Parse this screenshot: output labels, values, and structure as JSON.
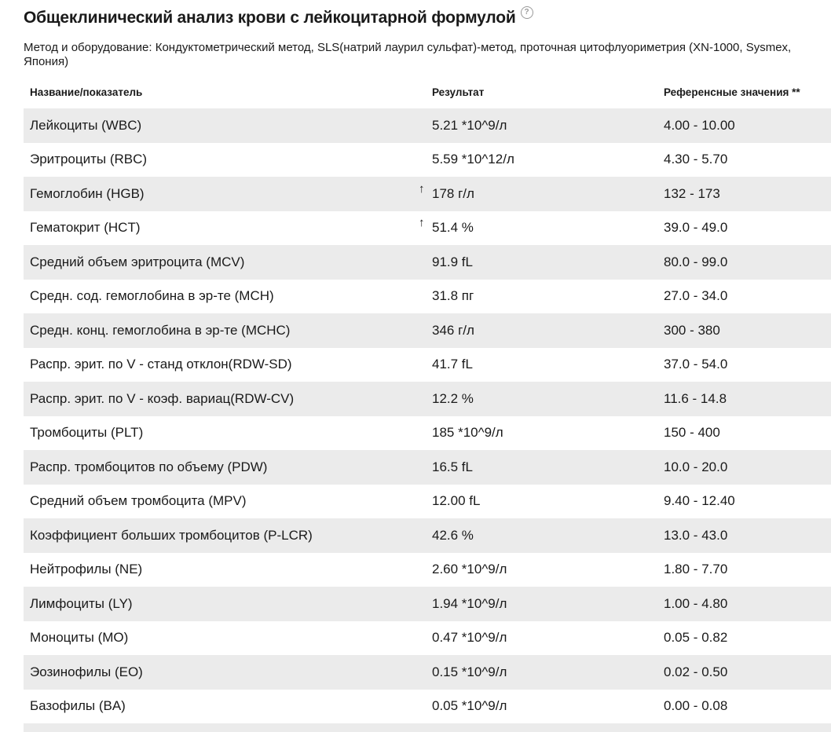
{
  "page": {
    "title": "Общеклинический анализ крови с лейкоцитарной формулой",
    "help_icon": "?",
    "method_line": "Метод и оборудование: Кондуктометрический метод, SLS(натрий лаурил сульфат)-метод, проточная цитофлуориметрия (XN-1000, Sysmex, Япония)"
  },
  "table": {
    "columns": [
      "Название/показатель",
      "Результат",
      "Референсные значения **"
    ],
    "flag_up_glyph": "↑",
    "rows": [
      {
        "name": "Лейкоциты (WBC)",
        "flag": "",
        "result": "5.21 *10^9/л",
        "reference": "4.00 - 10.00"
      },
      {
        "name": "Эритроциты (RBC)",
        "flag": "",
        "result": "5.59 *10^12/л",
        "reference": "4.30 - 5.70"
      },
      {
        "name": "Гемоглобин (HGB)",
        "flag": "↑",
        "result": "178 г/л",
        "reference": "132 - 173"
      },
      {
        "name": "Гематокрит (HCT)",
        "flag": "↑",
        "result": "51.4 %",
        "reference": "39.0 - 49.0"
      },
      {
        "name": "Средний объем эритроцита (MCV)",
        "flag": "",
        "result": "91.9 fL",
        "reference": "80.0 - 99.0"
      },
      {
        "name": "Средн. сод. гемоглобина в эр-те (MCH)",
        "flag": "",
        "result": "31.8 пг",
        "reference": "27.0 - 34.0"
      },
      {
        "name": "Средн. конц. гемоглобина в эр-те (MCHC)",
        "flag": "",
        "result": "346 г/л",
        "reference": "300 - 380"
      },
      {
        "name": "Распр. эрит. по V - станд отклон(RDW-SD)",
        "flag": "",
        "result": "41.7 fL",
        "reference": "37.0 - 54.0"
      },
      {
        "name": "Распр. эрит. по V - коэф. вариац(RDW-CV)",
        "flag": "",
        "result": "12.2 %",
        "reference": "11.6 - 14.8"
      },
      {
        "name": "Тромбоциты (PLT)",
        "flag": "",
        "result": "185 *10^9/л",
        "reference": "150 - 400"
      },
      {
        "name": "Распр. тромбоцитов по объему (PDW)",
        "flag": "",
        "result": "16.5 fL",
        "reference": "10.0 - 20.0"
      },
      {
        "name": "Средний объем тромбоцита (MPV)",
        "flag": "",
        "result": "12.00 fL",
        "reference": "9.40 - 12.40"
      },
      {
        "name": "Коэффициент больших тромбоцитов (P-LCR)",
        "flag": "",
        "result": "42.6 %",
        "reference": "13.0 - 43.0"
      },
      {
        "name": "Нейтрофилы (NE)",
        "flag": "",
        "result": "2.60 *10^9/л",
        "reference": "1.80 - 7.70"
      },
      {
        "name": "Лимфоциты (LY)",
        "flag": "",
        "result": "1.94 *10^9/л",
        "reference": "1.00 - 4.80"
      },
      {
        "name": "Моноциты (MO)",
        "flag": "",
        "result": "0.47 *10^9/л",
        "reference": "0.05 - 0.82"
      },
      {
        "name": "Эозинофилы (EO)",
        "flag": "",
        "result": "0.15 *10^9/л",
        "reference": "0.02 - 0.50"
      },
      {
        "name": "Базофилы (BA)",
        "flag": "",
        "result": "0.05 *10^9/л",
        "reference": "0.00 - 0.08"
      }
    ]
  },
  "colors": {
    "row_alt_bg": "#ebebeb",
    "text": "#1a1a1a",
    "help_icon_gray": "#999999"
  }
}
